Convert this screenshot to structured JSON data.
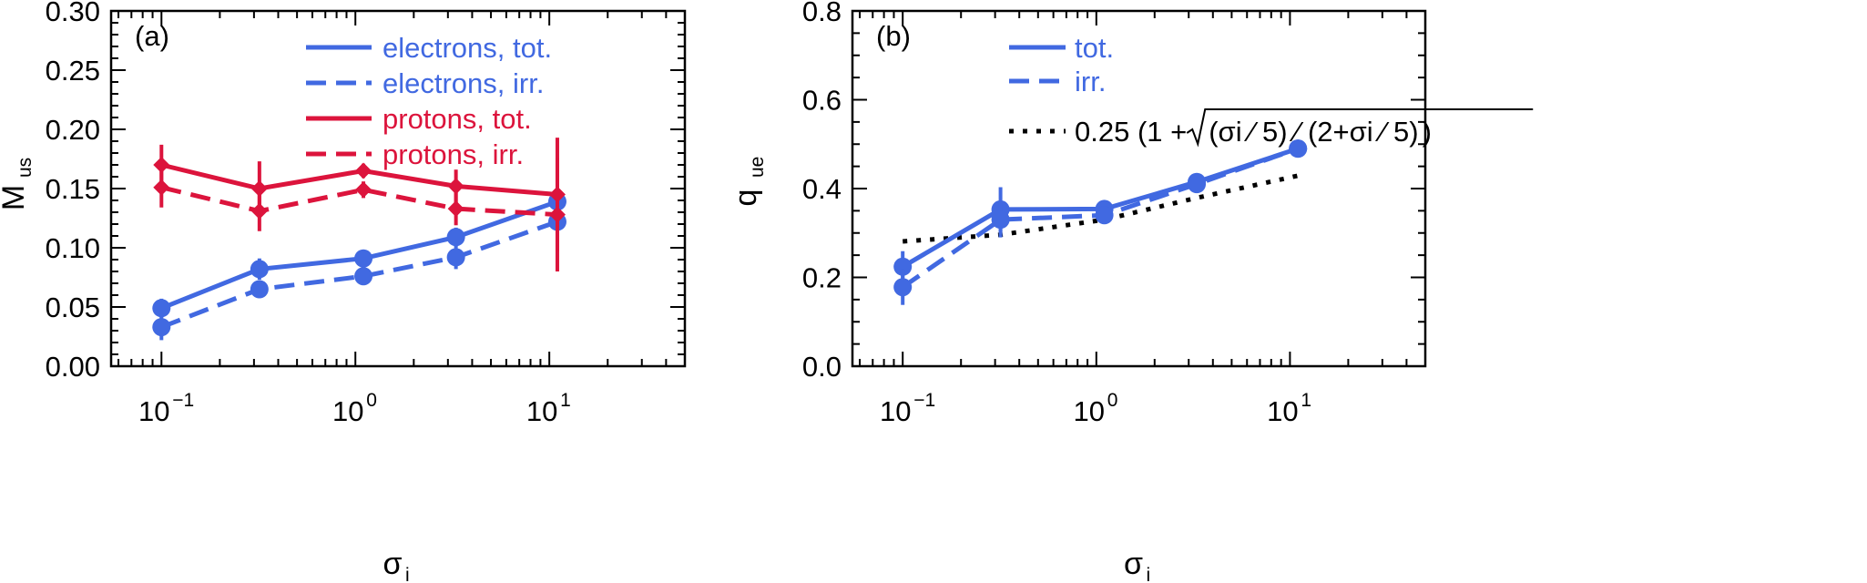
{
  "colors": {
    "electrons": "#4169e1",
    "protons": "#dc143c",
    "axis": "#000000",
    "fit": "#000000"
  },
  "chart_data": [
    {
      "type": "line",
      "panel_label": "(a)",
      "xlabel": "σ",
      "xlabel_sub": "i",
      "ylabel": "M",
      "ylabel_sub": "us",
      "xscale": "log",
      "xlim": [
        0.055,
        50
      ],
      "ylim": [
        0.0,
        0.3
      ],
      "xticks": [
        {
          "value": 0.1,
          "base": "10",
          "exp": "−1"
        },
        {
          "value": 1,
          "base": "10",
          "exp": "0"
        },
        {
          "value": 10,
          "base": "10",
          "exp": "1"
        }
      ],
      "yticks": [
        {
          "value": 0.0,
          "label": "0.00"
        },
        {
          "value": 0.05,
          "label": "0.05"
        },
        {
          "value": 0.1,
          "label": "0.10"
        },
        {
          "value": 0.15,
          "label": "0.15"
        },
        {
          "value": 0.2,
          "label": "0.20"
        },
        {
          "value": 0.25,
          "label": "0.25"
        },
        {
          "value": 0.3,
          "label": "0.30"
        }
      ],
      "series": [
        {
          "name": "electrons, tot.",
          "color": "#4169e1",
          "style": "solid",
          "marker": "circle",
          "x": [
            0.1,
            0.32,
            1.1,
            3.3,
            11
          ],
          "y": [
            0.049,
            0.082,
            0.091,
            0.109,
            0.139
          ],
          "err": [
            0.008,
            0.009,
            0.004,
            0.008,
            0.005
          ]
        },
        {
          "name": "electrons, irr.",
          "color": "#4169e1",
          "style": "dashed",
          "marker": "circle",
          "x": [
            0.1,
            0.32,
            1.1,
            3.3,
            11
          ],
          "y": [
            0.033,
            0.065,
            0.076,
            0.092,
            0.122
          ],
          "err": [
            0.011,
            0.007,
            0.004,
            0.01,
            0.006
          ]
        },
        {
          "name": "protons, tot.",
          "color": "#dc143c",
          "style": "solid",
          "marker": "diamond",
          "x": [
            0.1,
            0.32,
            1.1,
            3.3,
            11
          ],
          "y": [
            0.17,
            0.15,
            0.165,
            0.152,
            0.145
          ],
          "err": [
            0.017,
            0.023,
            0.006,
            0.014,
            0.048
          ]
        },
        {
          "name": "protons, irr.",
          "color": "#dc143c",
          "style": "dashed",
          "marker": "diamond",
          "x": [
            0.1,
            0.32,
            1.1,
            3.3,
            11
          ],
          "y": [
            0.151,
            0.131,
            0.149,
            0.133,
            0.128
          ],
          "err": [
            0.017,
            0.017,
            0.007,
            0.014,
            0.048
          ]
        }
      ],
      "legend_position": "top-center"
    },
    {
      "type": "line",
      "panel_label": "(b)",
      "xlabel": "σ",
      "xlabel_sub": "i",
      "ylabel": "q",
      "ylabel_sub": "ue",
      "xscale": "log",
      "xlim": [
        0.055,
        50
      ],
      "ylim": [
        0.0,
        0.8
      ],
      "xticks": [
        {
          "value": 0.1,
          "base": "10",
          "exp": "−1"
        },
        {
          "value": 1,
          "base": "10",
          "exp": "0"
        },
        {
          "value": 10,
          "base": "10",
          "exp": "1"
        }
      ],
      "yticks": [
        {
          "value": 0.0,
          "label": "0.0"
        },
        {
          "value": 0.2,
          "label": "0.2"
        },
        {
          "value": 0.4,
          "label": "0.4"
        },
        {
          "value": 0.6,
          "label": "0.6"
        },
        {
          "value": 0.8,
          "label": "0.8"
        }
      ],
      "series": [
        {
          "name": "tot.",
          "color": "#4169e1",
          "style": "solid",
          "marker": "circle",
          "x": [
            0.1,
            0.32,
            1.1,
            3.3,
            11
          ],
          "y": [
            0.224,
            0.353,
            0.354,
            0.415,
            0.49
          ],
          "err": [
            0.035,
            0.05,
            0.012,
            0.012,
            0.008
          ]
        },
        {
          "name": "irr.",
          "color": "#4169e1",
          "style": "dashed",
          "marker": "circle",
          "x": [
            0.1,
            0.32,
            1.1,
            3.3,
            11
          ],
          "y": [
            0.178,
            0.33,
            0.34,
            0.41,
            0.49
          ],
          "err": [
            0.04,
            0.04,
            0.012,
            0.012,
            0.008
          ]
        }
      ],
      "fit": {
        "name_prefix": "0.25 (1 + ",
        "sqrt_inner": "(σi ⁄ 5) ⁄ (2+σi ⁄ 5)",
        "name_suffix": ")",
        "color": "#000000",
        "style": "dotted",
        "x": [
          0.1,
          0.32,
          1.1,
          3.3,
          11
        ],
        "y": [
          0.281,
          0.296,
          0.33,
          0.379,
          0.429
        ]
      },
      "legend_position": "top-center"
    }
  ]
}
